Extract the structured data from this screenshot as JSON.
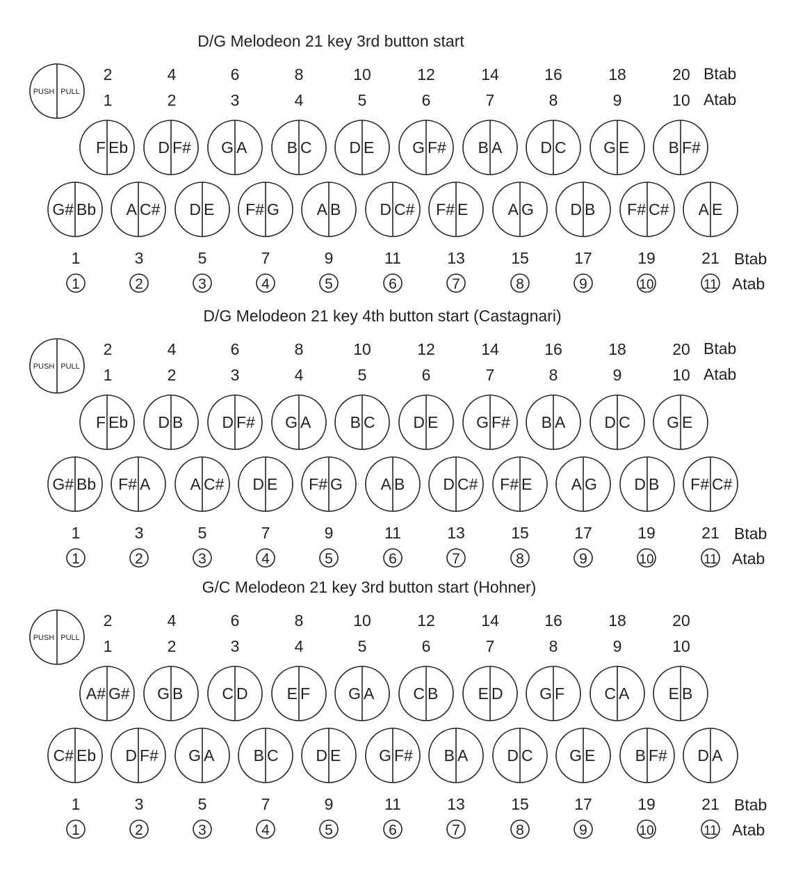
{
  "legend": {
    "push": "PUSH",
    "pull": "PULL"
  },
  "sections": [
    {
      "title": "D/G Melodeon 21 key 3rd button start",
      "top_even": [
        "2",
        "4",
        "6",
        "8",
        "10",
        "12",
        "14",
        "16",
        "18",
        "20"
      ],
      "top_odd": [
        "1",
        "2",
        "3",
        "4",
        "5",
        "6",
        "7",
        "8",
        "9",
        "10"
      ],
      "top_label_b": "Btab",
      "top_label_a": "Atab",
      "row1": [
        [
          "F",
          "Eb"
        ],
        [
          "D",
          "F#"
        ],
        [
          "G",
          "A"
        ],
        [
          "B",
          "C"
        ],
        [
          "D",
          "E"
        ],
        [
          "G",
          "F#"
        ],
        [
          "B",
          "A"
        ],
        [
          "D",
          "C"
        ],
        [
          "G",
          "E"
        ],
        [
          "B",
          "F#"
        ]
      ],
      "row2": [
        [
          "G#",
          "Bb"
        ],
        [
          "A",
          "C#"
        ],
        [
          "D",
          "E"
        ],
        [
          "F#",
          "G"
        ],
        [
          "A",
          "B"
        ],
        [
          "D",
          "C#"
        ],
        [
          "F#",
          "E"
        ],
        [
          "A",
          "G"
        ],
        [
          "D",
          "B"
        ],
        [
          "F#",
          "C#"
        ],
        [
          "A",
          "E"
        ]
      ],
      "bottom_btab": [
        "1",
        "3",
        "5",
        "7",
        "9",
        "11",
        "13",
        "15",
        "17",
        "19",
        "21"
      ],
      "bottom_atab": [
        "1",
        "2",
        "3",
        "4",
        "5",
        "6",
        "7",
        "8",
        "9",
        "10",
        "11"
      ],
      "bottom_label_b": "Btab",
      "bottom_label_a": "Atab"
    },
    {
      "title": "D/G Melodeon 21 key 4th button start (Castagnari)",
      "top_even": [
        "2",
        "4",
        "6",
        "8",
        "10",
        "12",
        "14",
        "16",
        "18",
        "20"
      ],
      "top_odd": [
        "1",
        "2",
        "3",
        "4",
        "5",
        "6",
        "7",
        "8",
        "9",
        "10"
      ],
      "top_label_b": "Btab",
      "top_label_a": "Atab",
      "row1": [
        [
          "F",
          "Eb"
        ],
        [
          "D",
          "B"
        ],
        [
          "D",
          "F#"
        ],
        [
          "G",
          "A"
        ],
        [
          "B",
          "C"
        ],
        [
          "D",
          "E"
        ],
        [
          "G",
          "F#"
        ],
        [
          "B",
          "A"
        ],
        [
          "D",
          "C"
        ],
        [
          "G",
          "E"
        ]
      ],
      "row2": [
        [
          "G#",
          "Bb"
        ],
        [
          "F#",
          "A"
        ],
        [
          "A",
          "C#"
        ],
        [
          "D",
          "E"
        ],
        [
          "F#",
          "G"
        ],
        [
          "A",
          "B"
        ],
        [
          "D",
          "C#"
        ],
        [
          "F#",
          "E"
        ],
        [
          "A",
          "G"
        ],
        [
          "D",
          "B"
        ],
        [
          "F#",
          "C#"
        ]
      ],
      "bottom_btab": [
        "1",
        "3",
        "5",
        "7",
        "9",
        "11",
        "13",
        "15",
        "17",
        "19",
        "21"
      ],
      "bottom_atab": [
        "1",
        "2",
        "3",
        "4",
        "5",
        "6",
        "7",
        "8",
        "9",
        "10",
        "11"
      ],
      "bottom_label_b": "Btab",
      "bottom_label_a": "Atab"
    },
    {
      "title": "G/C Melodeon 21 key 3rd button start (Hohner)",
      "top_even": [
        "2",
        "4",
        "6",
        "8",
        "10",
        "12",
        "14",
        "16",
        "18",
        "20"
      ],
      "top_odd": [
        "1",
        "2",
        "3",
        "4",
        "5",
        "6",
        "7",
        "8",
        "9",
        "10"
      ],
      "top_label_b": "",
      "top_label_a": "",
      "row1": [
        [
          "A#",
          "G#"
        ],
        [
          "G",
          "B"
        ],
        [
          "C",
          "D"
        ],
        [
          "E",
          "F"
        ],
        [
          "G",
          "A"
        ],
        [
          "C",
          "B"
        ],
        [
          "E",
          "D"
        ],
        [
          "G",
          "F"
        ],
        [
          "C",
          "A"
        ],
        [
          "E",
          "B"
        ]
      ],
      "row2": [
        [
          "C#",
          "Eb"
        ],
        [
          "D",
          "F#"
        ],
        [
          "G",
          "A"
        ],
        [
          "B",
          "C"
        ],
        [
          "D",
          "E"
        ],
        [
          "G",
          "F#"
        ],
        [
          "B",
          "A"
        ],
        [
          "D",
          "C"
        ],
        [
          "G",
          "E"
        ],
        [
          "B",
          "F#"
        ],
        [
          "D",
          "A"
        ]
      ],
      "bottom_btab": [
        "1",
        "3",
        "5",
        "7",
        "9",
        "11",
        "13",
        "15",
        "17",
        "19",
        "21"
      ],
      "bottom_atab": [
        "1",
        "2",
        "3",
        "4",
        "5",
        "6",
        "7",
        "8",
        "9",
        "10",
        "11"
      ],
      "bottom_label_b": "Btab",
      "bottom_label_a": "Atab"
    }
  ]
}
